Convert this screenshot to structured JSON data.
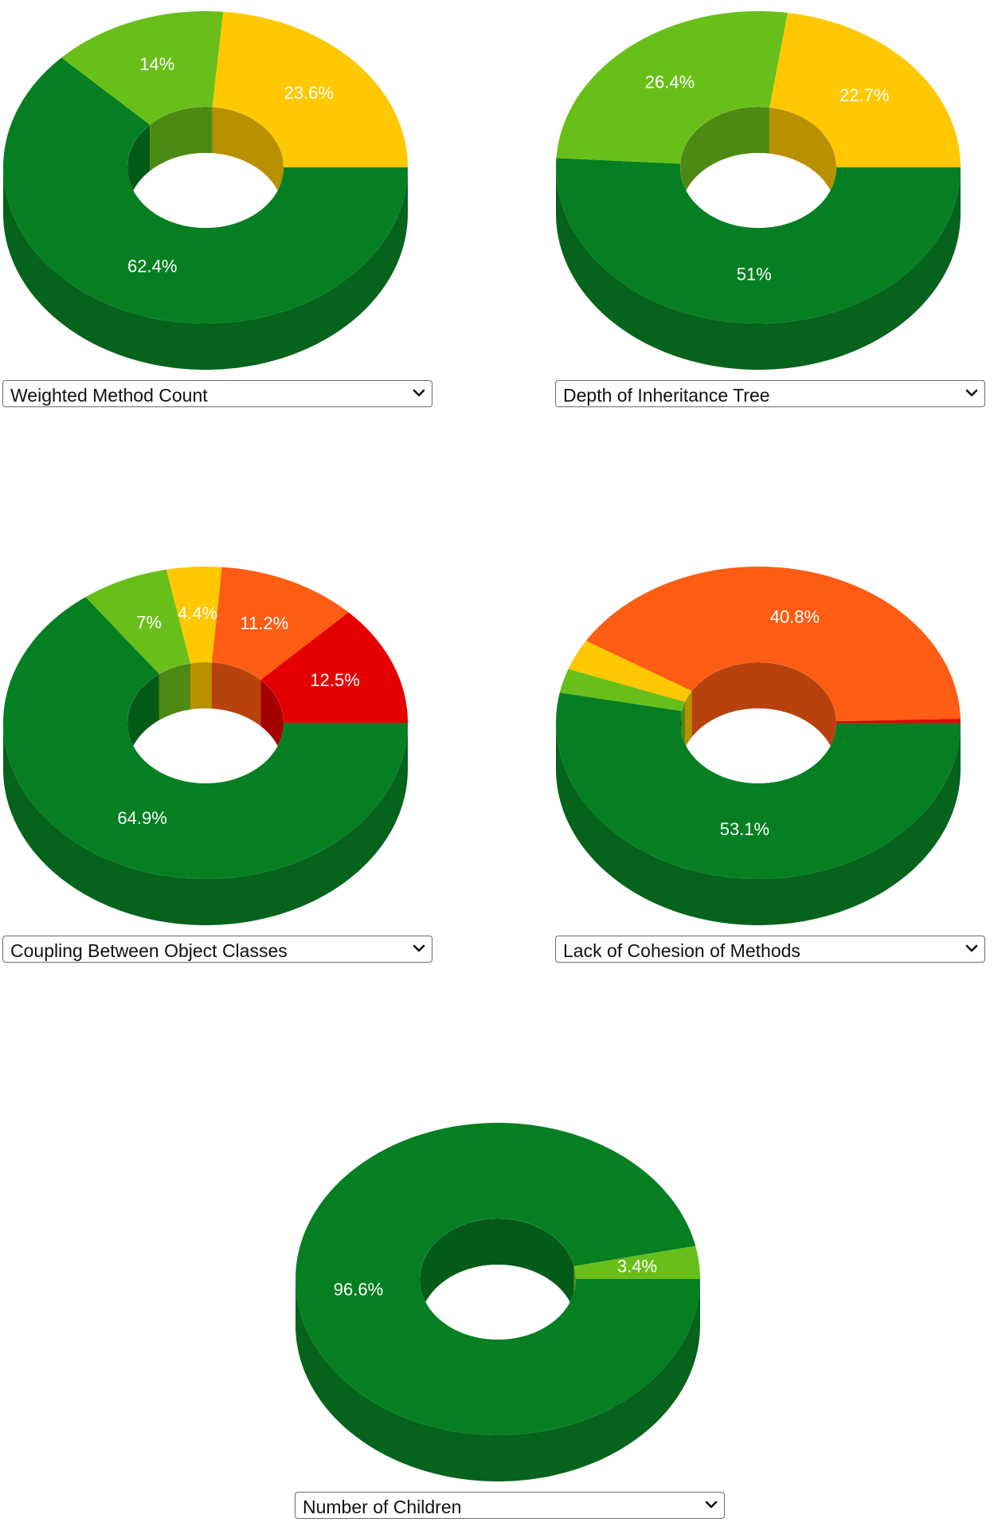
{
  "colors": {
    "dark_green": "#067f22",
    "light_green": "#69bf1a",
    "yellow": "#ffc800",
    "orange": "#ff5c14",
    "red": "#e50000"
  },
  "chart_data": [
    {
      "type": "pie",
      "title": "",
      "metric_select": {
        "selected": "Weighted Method Count"
      },
      "slices": [
        {
          "value": 62.4,
          "label": "62.4%",
          "color": "#067f22"
        },
        {
          "value": 14.0,
          "label": "14%",
          "color": "#69bf1a"
        },
        {
          "value": 23.6,
          "label": "23.6%",
          "color": "#ffc800"
        }
      ]
    },
    {
      "type": "pie",
      "title": "",
      "metric_select": {
        "selected": "Depth of Inheritance Tree"
      },
      "slices": [
        {
          "value": 51.0,
          "label": "51%",
          "color": "#067f22"
        },
        {
          "value": 26.4,
          "label": "26.4%",
          "color": "#69bf1a"
        },
        {
          "value": 22.7,
          "label": "22.7%",
          "color": "#ffc800"
        }
      ]
    },
    {
      "type": "pie",
      "title": "",
      "metric_select": {
        "selected": "Coupling Between Object Classes"
      },
      "slices": [
        {
          "value": 64.9,
          "label": "64.9%",
          "color": "#067f22"
        },
        {
          "value": 7.0,
          "label": "7%",
          "color": "#69bf1a"
        },
        {
          "value": 4.4,
          "label": "4.4%",
          "color": "#ffc800"
        },
        {
          "value": 11.2,
          "label": "11.2%",
          "color": "#ff5c14"
        },
        {
          "value": 12.5,
          "label": "12.5%",
          "color": "#e50000"
        }
      ]
    },
    {
      "type": "pie",
      "title": "",
      "metric_select": {
        "selected": "Lack of Cohesion of Methods"
      },
      "slices": [
        {
          "value": 53.1,
          "label": "53.1%",
          "color": "#067f22"
        },
        {
          "value": 2.5,
          "label": "",
          "color": "#69bf1a"
        },
        {
          "value": 3.2,
          "label": "",
          "color": "#ffc800"
        },
        {
          "value": 40.8,
          "label": "40.8%",
          "color": "#ff5c14"
        },
        {
          "value": 0.4,
          "label": "",
          "color": "#e50000"
        }
      ]
    },
    {
      "type": "pie",
      "title": "",
      "metric_select": {
        "selected": "Number of Children"
      },
      "slices": [
        {
          "value": 96.6,
          "label": "96.6%",
          "color": "#067f22"
        },
        {
          "value": 3.4,
          "label": "3.4%",
          "color": "#69bf1a"
        }
      ]
    }
  ]
}
